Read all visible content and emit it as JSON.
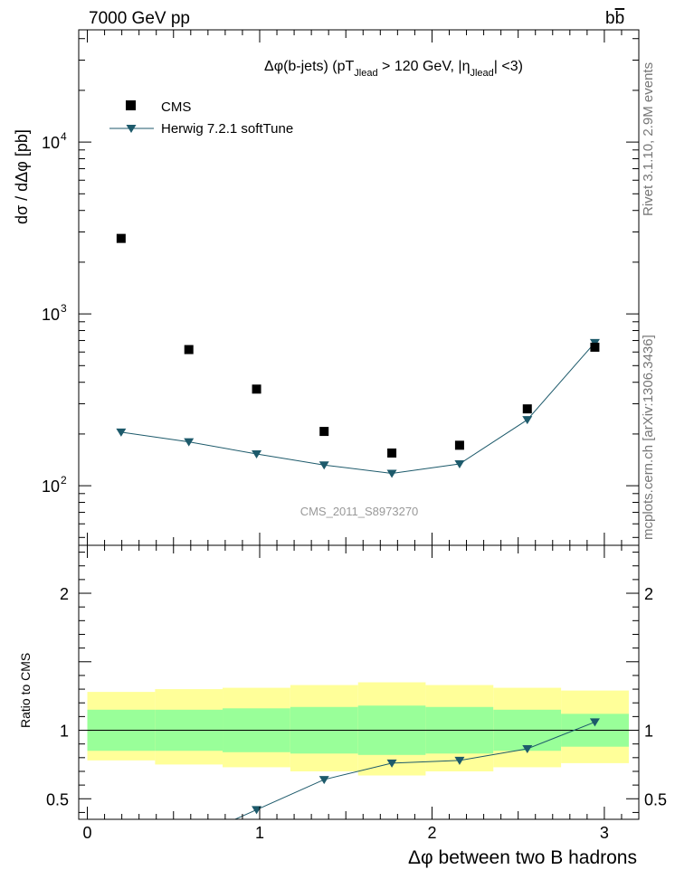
{
  "header": {
    "left": "7000 GeV pp",
    "right": "b",
    "right_bar": "b"
  },
  "side_text": {
    "upper": "Rivet 3.1.10,  2.9M events",
    "lower": "mcplots.cern.ch [arXiv:1306.3436]"
  },
  "chart_data": [
    {
      "type": "scatter",
      "panel": "main",
      "title_parts": {
        "a": "Δφ(b-jets) (pT",
        "a_sub": "Jlead",
        "b": " >  120 GeV, |η",
        "b_sub": "Jlead",
        "c": "| <3)"
      },
      "ylabel": "dσ / dΔφ [pb]",
      "yscale": "log",
      "ylim": [
        45,
        45000
      ],
      "xlim": [
        -0.05,
        3.2
      ],
      "x_ticks": [
        "0",
        "1",
        "2",
        "3"
      ],
      "y_ticks": [
        {
          "base": "10",
          "exp": "2"
        },
        {
          "base": "10",
          "exp": "3"
        },
        {
          "base": "10",
          "exp": "4"
        }
      ],
      "watermark": "CMS_2011_S8973270",
      "legend_position": "top-left",
      "series": [
        {
          "name": "CMS",
          "color": "#000000",
          "marker": "square",
          "x": [
            0.196,
            0.589,
            0.982,
            1.374,
            1.767,
            2.16,
            2.553,
            2.945
          ],
          "y": [
            2750,
            620,
            365,
            207,
            155,
            172,
            280,
            640
          ]
        },
        {
          "name": "Herwig 7.2.1 softTune",
          "color": "#1d5a6b",
          "marker": "triangle-down",
          "x": [
            0.196,
            0.589,
            0.982,
            1.374,
            1.767,
            2.16,
            2.553,
            2.945
          ],
          "y": [
            205,
            180,
            153,
            132,
            118,
            134,
            242,
            680
          ]
        }
      ]
    },
    {
      "type": "line",
      "panel": "ratio",
      "ylabel": "Ratio to CMS",
      "ylim": [
        0.35,
        2.35
      ],
      "y_ticks": [
        "0.5",
        "1",
        "2"
      ],
      "bin_edges": [
        0,
        0.393,
        0.785,
        1.178,
        1.571,
        1.963,
        2.356,
        2.749,
        3.142
      ],
      "band_inner": {
        "color": "#99ff99",
        "lo": [
          0.85,
          0.85,
          0.84,
          0.83,
          0.82,
          0.83,
          0.85,
          0.88
        ],
        "hi": [
          1.15,
          1.15,
          1.16,
          1.17,
          1.18,
          1.17,
          1.15,
          1.12
        ]
      },
      "band_outer": {
        "color": "#ffff99",
        "lo": [
          0.78,
          0.75,
          0.73,
          0.7,
          0.67,
          0.7,
          0.73,
          0.76
        ],
        "hi": [
          1.28,
          1.3,
          1.31,
          1.33,
          1.35,
          1.33,
          1.31,
          1.29
        ]
      },
      "series": [
        {
          "name": "Herwig 7.2.1 softTune",
          "color": "#1d5a6b",
          "marker": "triangle-down",
          "x": [
            0.982,
            1.374,
            1.767,
            2.16,
            2.553,
            2.945
          ],
          "y": [
            0.42,
            0.64,
            0.76,
            0.78,
            0.865,
            1.06
          ]
        }
      ]
    }
  ],
  "xlabel": "Δφ between two B hadrons"
}
